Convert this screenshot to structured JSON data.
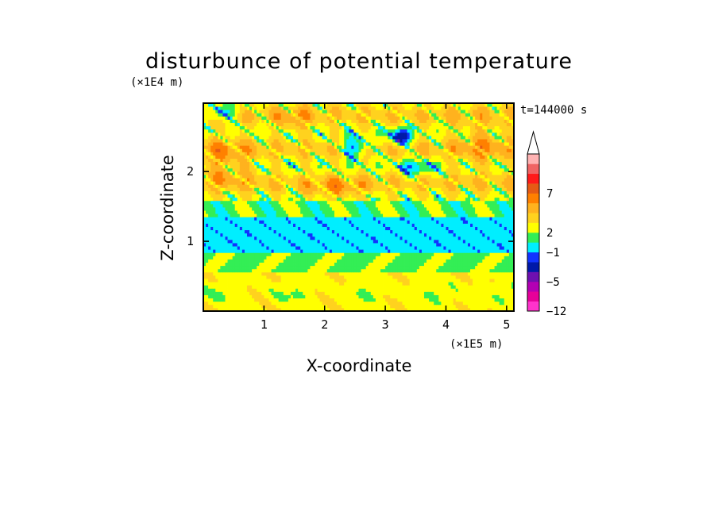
{
  "chart_data": {
    "type": "heatmap",
    "title": "disturbunce of potential temperature",
    "xlabel": "X-coordinate",
    "ylabel": "Z-coordinate",
    "x_scale_note": "(×1E5 m)",
    "y_scale_note": "(×1E4 m)",
    "time_label": "t=144000 s",
    "xlim": [
      0,
      5.12
    ],
    "ylim": [
      0,
      2.98
    ],
    "x_ticks": [
      {
        "value": 1,
        "label": "1"
      },
      {
        "value": 2,
        "label": "2"
      },
      {
        "value": 3,
        "label": "3"
      },
      {
        "value": 4,
        "label": "4"
      },
      {
        "value": 5,
        "label": "5"
      }
    ],
    "y_ticks": [
      {
        "value": 1,
        "label": "1"
      },
      {
        "value": 2,
        "label": "2"
      }
    ],
    "colorbar": {
      "levels": [
        {
          "color": "#ff33cc"
        },
        {
          "color": "#e60099"
        },
        {
          "color": "#b300b3"
        },
        {
          "color": "#6e10b0"
        },
        {
          "color": "#0019a8"
        },
        {
          "color": "#1133ff"
        },
        {
          "color": "#00eeff"
        },
        {
          "color": "#33ee55"
        },
        {
          "color": "#ffff00"
        },
        {
          "color": "#ffd21e"
        },
        {
          "color": "#ffb21e"
        },
        {
          "color": "#ff8000"
        },
        {
          "color": "#e65a14"
        },
        {
          "color": "#ff1a1a"
        },
        {
          "color": "#f06464"
        },
        {
          "color": "#ffb3b3"
        }
      ],
      "extend_top": true,
      "labels": [
        {
          "level_index": 0,
          "text": "−12"
        },
        {
          "level_index": 3,
          "text": "−5"
        },
        {
          "level_index": 6,
          "text": "−1"
        },
        {
          "level_index": 8,
          "text": "2"
        },
        {
          "level_index": 12,
          "text": "7"
        }
      ]
    },
    "field": {
      "nx": 128,
      "nz": 64,
      "color_levels": "index into colorbar.levels (0..15)",
      "description_bands": [
        {
          "z_range": [
            0,
            0.55
          ],
          "dominant_levels": [
            8,
            9,
            7
          ]
        },
        {
          "z_range": [
            0.55,
            0.85
          ],
          "dominant_levels": [
            7,
            8,
            6
          ]
        },
        {
          "z_range": [
            0.85,
            1.35
          ],
          "dominant_levels": [
            6,
            5,
            4
          ]
        },
        {
          "z_range": [
            1.35,
            1.6
          ],
          "dominant_levels": [
            7,
            8
          ]
        },
        {
          "z_range": [
            1.6,
            2.98
          ],
          "dominant_levels": [
            8,
            9,
            10,
            11,
            12,
            13,
            6,
            5,
            4,
            3
          ]
        }
      ]
    }
  }
}
